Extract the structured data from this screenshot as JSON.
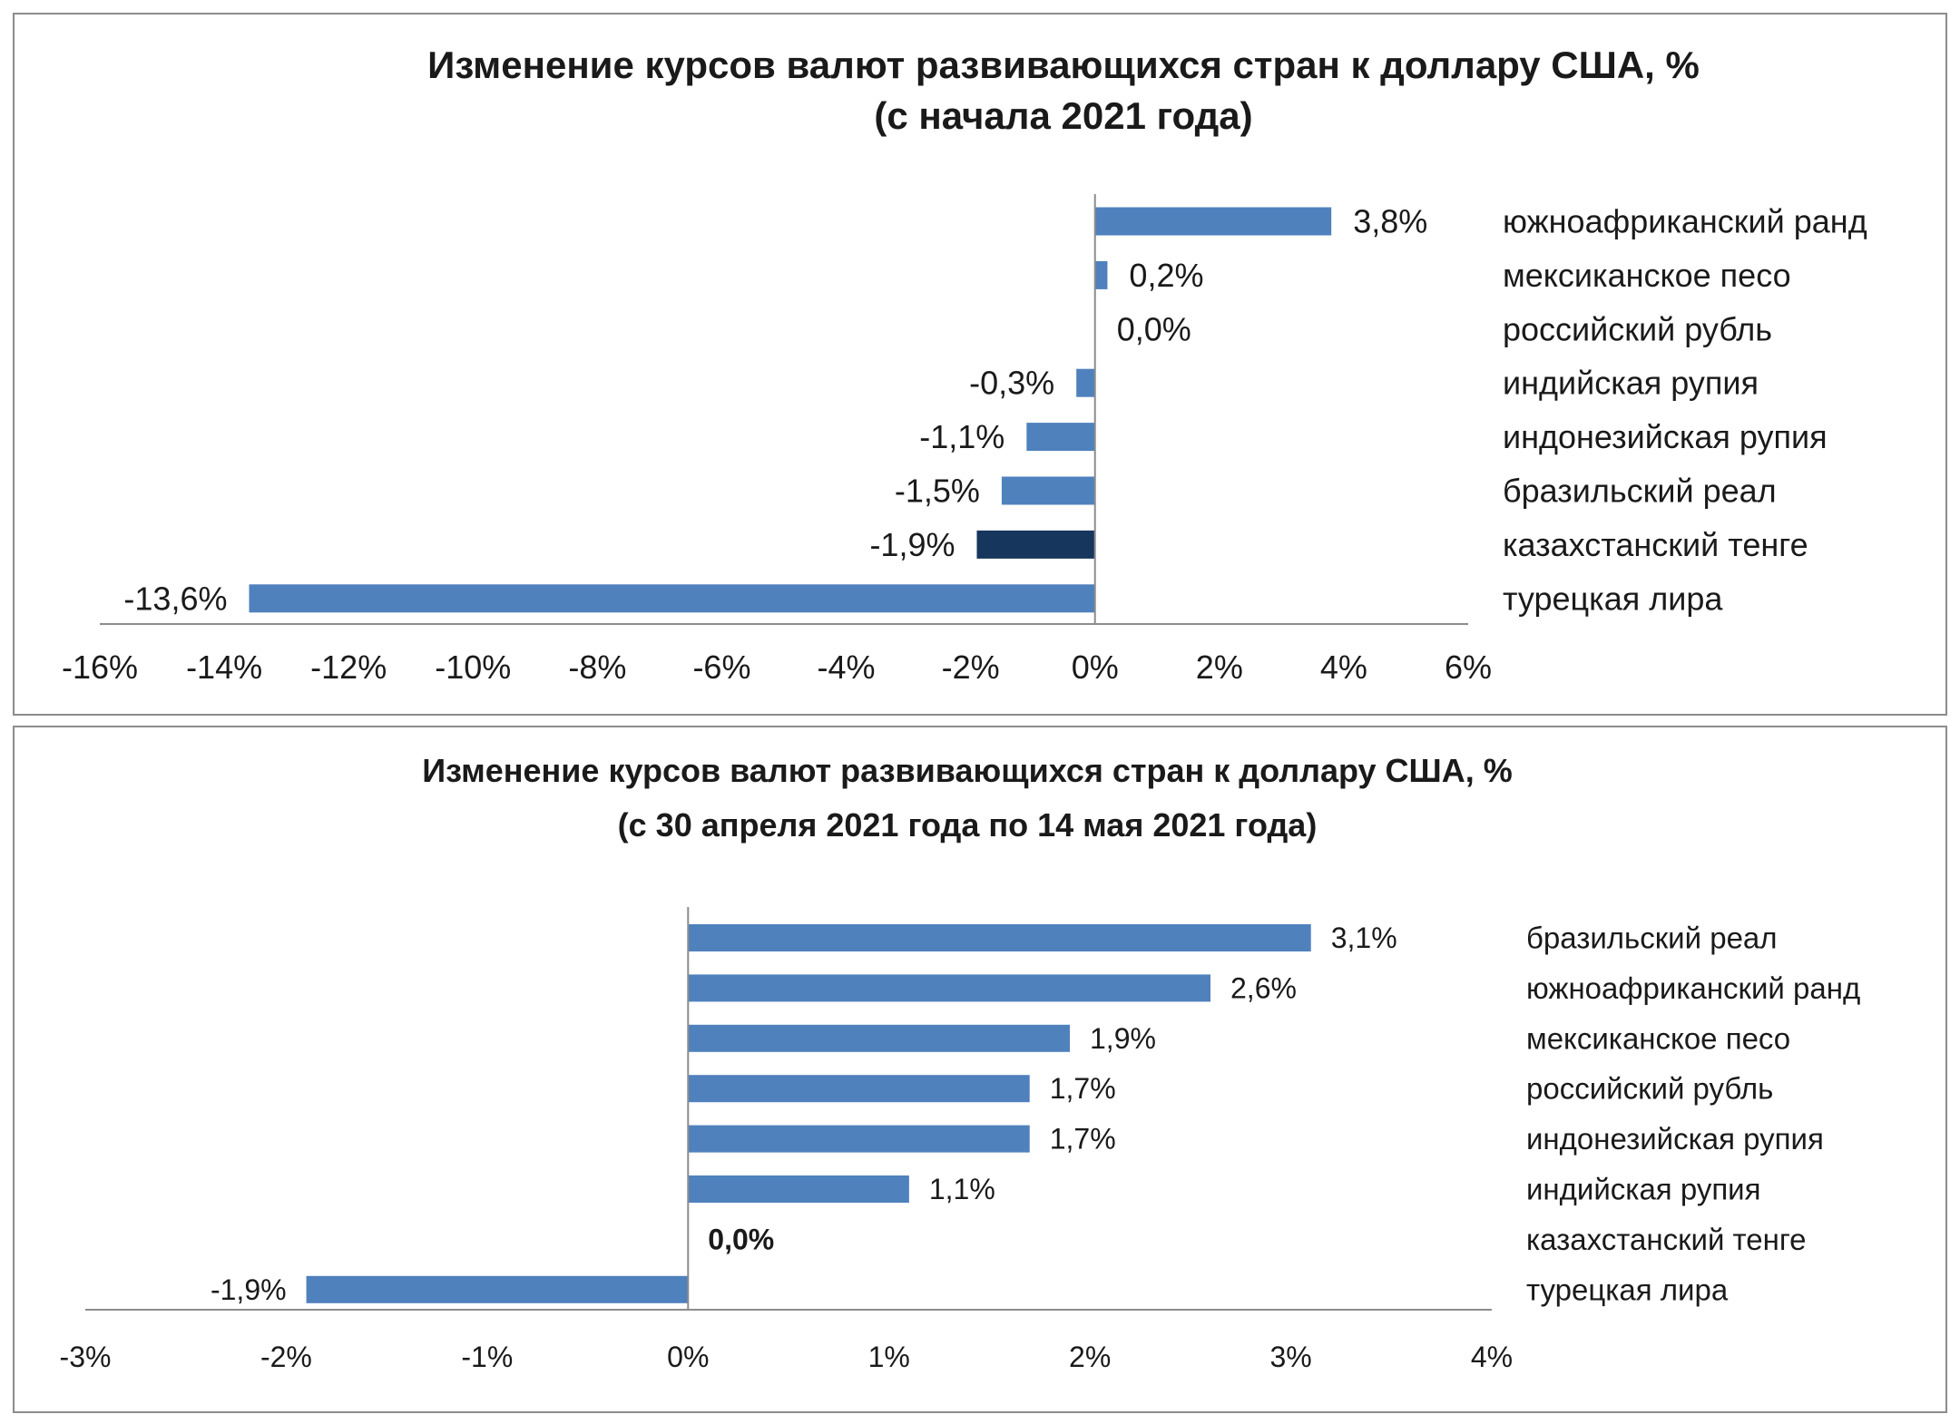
{
  "chart_data": [
    {
      "type": "bar",
      "orientation": "horizontal",
      "title": "Изменение курсов валют развивающихся стран к доллару США, %",
      "subtitle": "(с начала 2021 года)",
      "categories": [
        "южноафриканский  ранд",
        "мексиканское песо",
        "российский рубль",
        "индийская рупия",
        "индонезийская  рупия",
        "бразильский  реал",
        "казахстанский  тенге",
        "турецкая  лира"
      ],
      "values": [
        3.8,
        0.2,
        0.0,
        -0.3,
        -1.1,
        -1.5,
        -1.9,
        -13.6
      ],
      "value_labels": [
        "3,8%",
        "0,2%",
        "0,0%",
        "-0,3%",
        "-1,1%",
        "-1,5%",
        "-1,9%",
        "-13,6%"
      ],
      "highlight_index": 6,
      "xlim": [
        -16,
        6
      ],
      "xticks": [
        -16,
        -14,
        -12,
        -10,
        -8,
        -6,
        -4,
        -2,
        0,
        2,
        4,
        6
      ],
      "xtick_labels": [
        "-16%",
        "-14%",
        "-12%",
        "-10%",
        "-8%",
        "-6%",
        "-4%",
        "-2%",
        "0%",
        "2%",
        "4%",
        "6%"
      ],
      "bar_color": "#4f81bd",
      "highlight_color": "#17365d",
      "grid": false
    },
    {
      "type": "bar",
      "orientation": "horizontal",
      "title": "Изменение курсов валют развивающихся стран к доллару США, %",
      "subtitle": "(с 30 апреля 2021 года по 14 мая 2021 года)",
      "categories": [
        "бразильский реал",
        "южноафриканский ранд",
        "мексиканское песо",
        "российский рубль",
        "индонезийская рупия",
        "индийская рупия",
        "казахстанский тенге",
        "турецкая лира"
      ],
      "values": [
        3.1,
        2.6,
        1.9,
        1.7,
        1.7,
        1.1,
        0.0,
        -1.9
      ],
      "value_labels": [
        "3,1%",
        "2,6%",
        "1,9%",
        "1,7%",
        "1,7%",
        "1,1%",
        "0,0%",
        "-1,9%"
      ],
      "bold_label_index": 6,
      "xlim": [
        -3,
        4
      ],
      "xticks": [
        -3,
        -2,
        -1,
        0,
        1,
        2,
        3,
        4
      ],
      "xtick_labels": [
        "-3%",
        "-2%",
        "-1%",
        "0%",
        "1%",
        "2%",
        "3%",
        "4%"
      ],
      "bar_color": "#4f81bd",
      "grid": false
    }
  ]
}
